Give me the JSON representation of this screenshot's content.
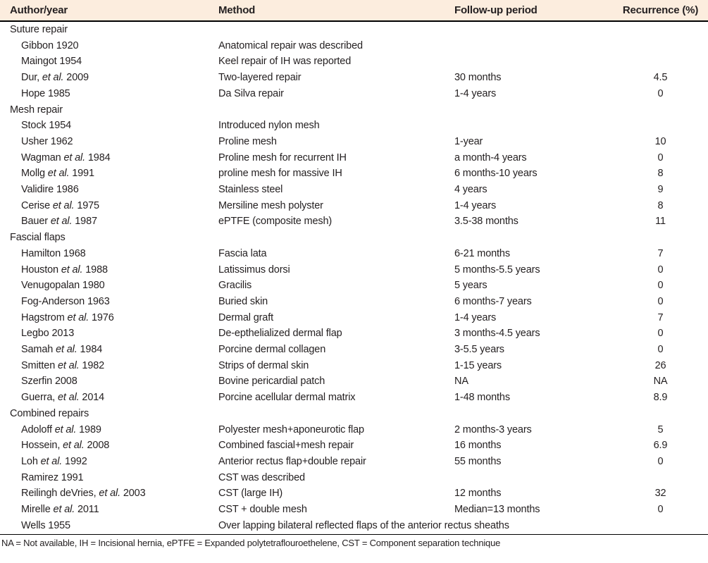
{
  "table": {
    "header": {
      "columns": [
        "Author/year",
        "Method",
        "Follow-up period",
        "Recurrence (%)"
      ],
      "bg_color": "#fcedde"
    },
    "sections": [
      {
        "title": "Suture repair",
        "rows": [
          {
            "author_pre": "Gibbon 1920",
            "author_italic": "",
            "author_post": "",
            "method": "Anatomical repair was described",
            "followup": "",
            "recurrence": ""
          },
          {
            "author_pre": "Maingot 1954",
            "author_italic": "",
            "author_post": "",
            "method": "Keel repair of IH was reported",
            "followup": "",
            "recurrence": ""
          },
          {
            "author_pre": "Dur, ",
            "author_italic": "et al.",
            "author_post": " 2009",
            "method": "Two-layered repair",
            "followup": "30 months",
            "recurrence": "4.5"
          },
          {
            "author_pre": "Hope 1985",
            "author_italic": "",
            "author_post": "",
            "method": "Da Silva repair",
            "followup": "1-4 years",
            "recurrence": "0"
          }
        ]
      },
      {
        "title": "Mesh repair",
        "rows": [
          {
            "author_pre": "Stock 1954",
            "author_italic": "",
            "author_post": "",
            "method": "Introduced nylon mesh",
            "followup": "",
            "recurrence": ""
          },
          {
            "author_pre": "Usher 1962",
            "author_italic": "",
            "author_post": "",
            "method": "Proline mesh",
            "followup": "1-year",
            "recurrence": "10"
          },
          {
            "author_pre": "Wagman ",
            "author_italic": "et al.",
            "author_post": " 1984",
            "method": "Proline mesh for recurrent IH",
            "followup": "a month-4 years",
            "recurrence": "0"
          },
          {
            "author_pre": "Mollg ",
            "author_italic": "et al.",
            "author_post": " 1991",
            "method": "proline mesh for massive IH",
            "followup": "6 months-10 years",
            "recurrence": "8"
          },
          {
            "author_pre": "Validire 1986",
            "author_italic": "",
            "author_post": "",
            "method": "Stainless steel",
            "followup": "4 years",
            "recurrence": "9"
          },
          {
            "author_pre": "Cerise ",
            "author_italic": "et al.",
            "author_post": " 1975",
            "method": "Mersiline mesh polyster",
            "followup": "1-4 years",
            "recurrence": "8"
          },
          {
            "author_pre": "Bauer ",
            "author_italic": "et al.",
            "author_post": " 1987",
            "method": "ePTFE (composite mesh)",
            "followup": "3.5-38 months",
            "recurrence": "11"
          }
        ]
      },
      {
        "title": "Fascial flaps",
        "rows": [
          {
            "author_pre": "Hamilton 1968",
            "author_italic": "",
            "author_post": "",
            "method": "Fascia lata",
            "followup": "6-21 months",
            "recurrence": "7"
          },
          {
            "author_pre": "Houston ",
            "author_italic": "et al.",
            "author_post": " 1988",
            "method": "Latissimus dorsi",
            "followup": "5 months-5.5 years",
            "recurrence": "0"
          },
          {
            "author_pre": "Venugopalan 1980",
            "author_italic": "",
            "author_post": "",
            "method": "Gracilis",
            "followup": "5 years",
            "recurrence": "0"
          },
          {
            "author_pre": "Fog-Anderson 1963",
            "author_italic": "",
            "author_post": "",
            "method": "Buried skin",
            "followup": "6 months-7 years",
            "recurrence": "0"
          },
          {
            "author_pre": "Hagstrom ",
            "author_italic": "et al.",
            "author_post": " 1976",
            "method": "Dermal graft",
            "followup": "1-4 years",
            "recurrence": "7"
          },
          {
            "author_pre": "Legbo 2013",
            "author_italic": "",
            "author_post": "",
            "method": "De-epthelialized dermal flap",
            "followup": "3 months-4.5 years",
            "recurrence": "0"
          },
          {
            "author_pre": "Samah ",
            "author_italic": "et al.",
            "author_post": " 1984",
            "method": "Porcine dermal collagen",
            "followup": "3-5.5 years",
            "recurrence": "0"
          },
          {
            "author_pre": "Smitten ",
            "author_italic": "et al.",
            "author_post": " 1982",
            "method": "Strips of dermal skin",
            "followup": "1-15 years",
            "recurrence": "26"
          },
          {
            "author_pre": "Szerfin 2008",
            "author_italic": "",
            "author_post": "",
            "method": "Bovine pericardial patch",
            "followup": "NA",
            "recurrence": "NA"
          },
          {
            "author_pre": "Guerra, ",
            "author_italic": "et al.",
            "author_post": " 2014",
            "method": "Porcine acellular dermal matrix",
            "followup": "1-48 months",
            "recurrence": "8.9"
          }
        ]
      },
      {
        "title": "Combined repairs",
        "rows": [
          {
            "author_pre": "Adoloff ",
            "author_italic": "et al.",
            "author_post": " 1989",
            "method": "Polyester mesh+aponeurotic flap",
            "followup": "2 months-3 years",
            "recurrence": "5"
          },
          {
            "author_pre": "Hossein, ",
            "author_italic": "et al.",
            "author_post": " 2008",
            "method": "Combined fascial+mesh repair",
            "followup": "16 months",
            "recurrence": "6.9"
          },
          {
            "author_pre": "Loh ",
            "author_italic": "et al.",
            "author_post": " 1992",
            "method": "Anterior rectus flap+double repair",
            "followup": "55 months",
            "recurrence": "0"
          },
          {
            "author_pre": "Ramirez 1991",
            "author_italic": "",
            "author_post": "",
            "method": "CST was described",
            "followup": "",
            "recurrence": ""
          },
          {
            "author_pre": "Reilingh deVries, ",
            "author_italic": "et al.",
            "author_post": " 2003",
            "method": "CST (large IH)",
            "followup": "12 months",
            "recurrence": "32"
          },
          {
            "author_pre": "Mirelle ",
            "author_italic": "et al.",
            "author_post": " 2011",
            "method": "CST + double mesh",
            "followup": "Median=13 months",
            "recurrence": "0"
          },
          {
            "author_pre": "Wells 1955",
            "author_italic": "",
            "author_post": "",
            "method": "Over lapping bilateral reflected flaps of the anterior rectus sheaths",
            "followup": "",
            "recurrence": ""
          }
        ]
      }
    ],
    "footnote": "NA = Not available, IH = Incisional hernia, ePTFE = Expanded polytetraflouroethelene, CST = Component separation technique"
  },
  "colors": {
    "header_bg": "#fcedde",
    "text": "#231f20",
    "rule": "#000000"
  }
}
